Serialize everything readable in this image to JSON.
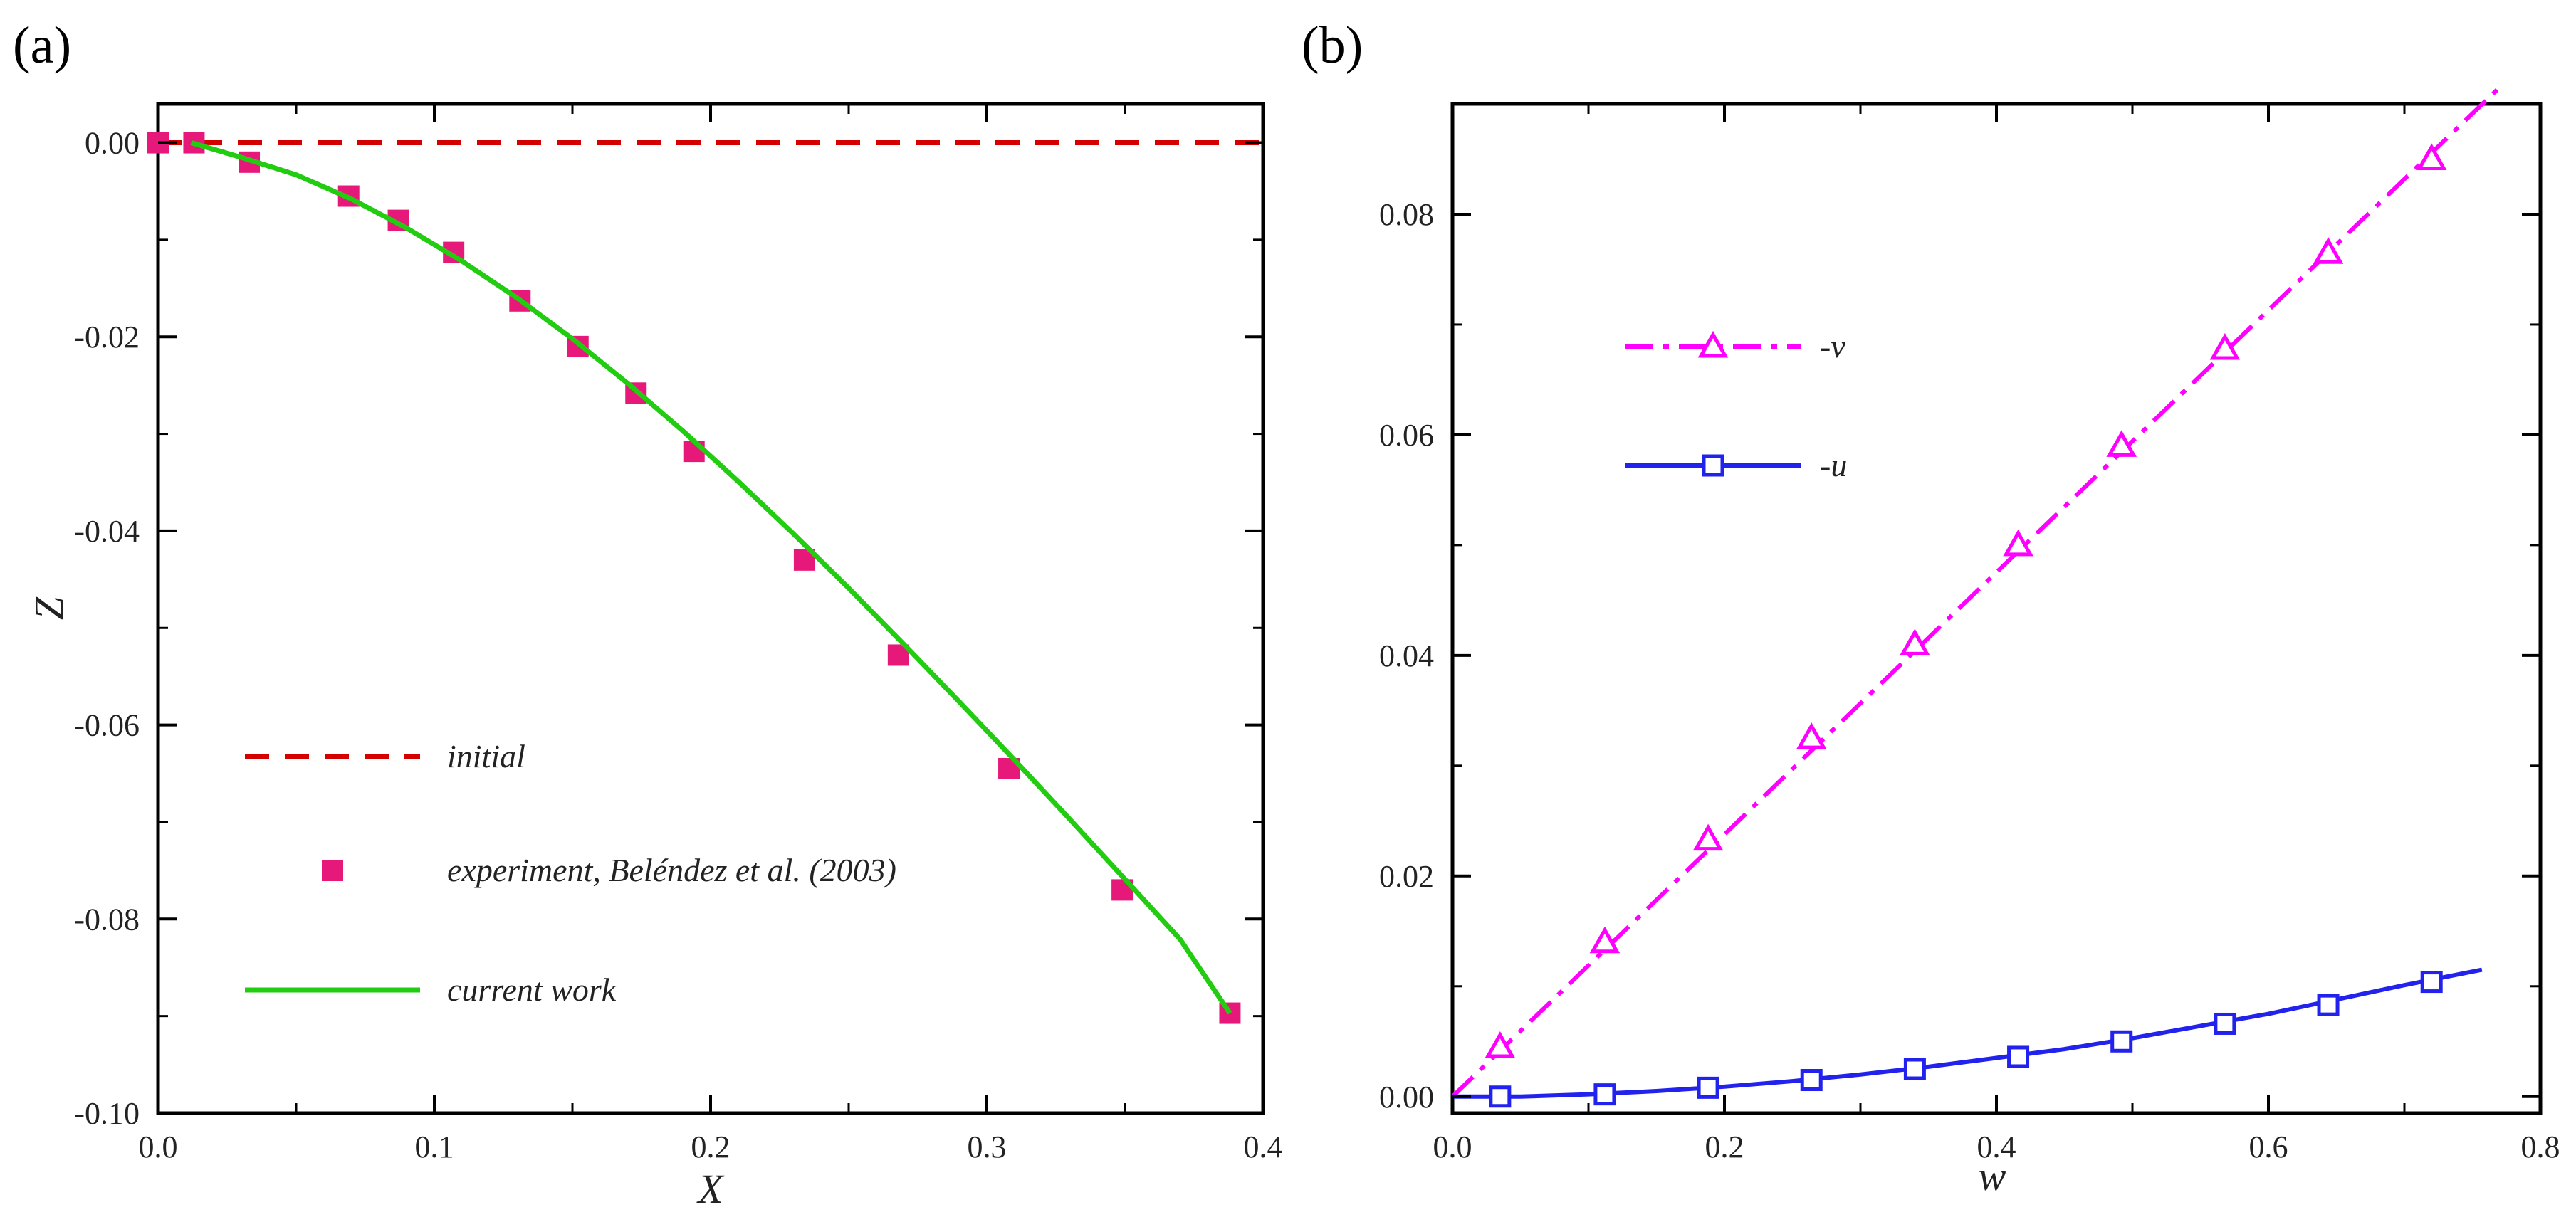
{
  "colors": {
    "initial": "#d40000",
    "experiment": "#e6197a",
    "current": "#22cc11",
    "v": "#ff00ff",
    "u": "#2222ee",
    "axis": "#000000"
  },
  "chart_data": [
    {
      "panel": "(a)",
      "type": "line",
      "xlabel": "X",
      "ylabel": "Z",
      "xlim": [
        0.0,
        0.4
      ],
      "ylim": [
        -0.1,
        0.004
      ],
      "xticks": [
        0.0,
        0.1,
        0.2,
        0.3,
        0.4
      ],
      "xtick_labels": [
        "0.0",
        "0.1",
        "0.2",
        "0.3",
        "0.4"
      ],
      "yticks": [
        0.0,
        -0.02,
        -0.04,
        -0.06,
        -0.08,
        -0.1
      ],
      "ytick_labels": [
        "0.00",
        "-0.02",
        "-0.04",
        "-0.06",
        "-0.08",
        "-0.10"
      ],
      "legend_position": "bottom-left",
      "series": [
        {
          "name": "initial",
          "style": "dashed",
          "color": "#d40000",
          "x": [
            0.0,
            0.4
          ],
          "y": [
            0.0,
            0.0
          ]
        },
        {
          "name": "experiment, Beléndez et al. (2003)",
          "style": "square-markers",
          "color": "#e6197a",
          "x": [
            0.0,
            0.013,
            0.033,
            0.069,
            0.087,
            0.107,
            0.131,
            0.152,
            0.173,
            0.194,
            0.234,
            0.268,
            0.308,
            0.349,
            0.388
          ],
          "y": [
            0.0,
            0.0,
            -0.002,
            -0.0055,
            -0.008,
            -0.0113,
            -0.0163,
            -0.021,
            -0.0258,
            -0.0318,
            -0.043,
            -0.0528,
            -0.0645,
            -0.077,
            -0.0897
          ]
        },
        {
          "name": "current work",
          "style": "solid",
          "color": "#22cc11",
          "x": [
            0.012,
            0.03,
            0.05,
            0.07,
            0.09,
            0.11,
            0.13,
            0.15,
            0.17,
            0.19,
            0.21,
            0.23,
            0.25,
            0.27,
            0.29,
            0.31,
            0.33,
            0.35,
            0.37,
            0.388
          ],
          "y": [
            0.0,
            -0.0015,
            -0.0033,
            -0.0058,
            -0.0088,
            -0.0122,
            -0.016,
            -0.0202,
            -0.0248,
            -0.0297,
            -0.0349,
            -0.0403,
            -0.0459,
            -0.0517,
            -0.0576,
            -0.0636,
            -0.0697,
            -0.0759,
            -0.0821,
            -0.0897
          ]
        }
      ]
    },
    {
      "panel": "(b)",
      "type": "line",
      "xlabel": "w",
      "ylabel": "",
      "xlim": [
        0.0,
        0.8
      ],
      "ylim": [
        -0.0015,
        0.09
      ],
      "xticks": [
        0.0,
        0.2,
        0.4,
        0.6,
        0.8
      ],
      "xtick_labels": [
        "0.0",
        "0.2",
        "0.4",
        "0.6",
        "0.8"
      ],
      "yticks": [
        0.0,
        0.02,
        0.04,
        0.06,
        0.08
      ],
      "ytick_labels": [
        "0.00",
        "0.02",
        "0.04",
        "0.06",
        "0.08"
      ],
      "legend_position": "upper-left",
      "series": [
        {
          "name": "-v",
          "style": "dashdot-triangles",
          "color": "#ff00ff",
          "x": [
            0.0,
            0.77
          ],
          "y": [
            0.0,
            0.0915
          ],
          "marker_x": [
            0.035,
            0.112,
            0.188,
            0.264,
            0.34,
            0.416,
            0.492,
            0.568,
            0.644,
            0.72
          ],
          "marker_y": [
            0.0045,
            0.014,
            0.0233,
            0.0325,
            0.041,
            0.05,
            0.059,
            0.0678,
            0.0765,
            0.085
          ]
        },
        {
          "name": "-u",
          "style": "solid-squares",
          "color": "#2222ee",
          "x": [
            0.0,
            0.05,
            0.1,
            0.15,
            0.2,
            0.25,
            0.3,
            0.35,
            0.4,
            0.45,
            0.5,
            0.55,
            0.6,
            0.65,
            0.7,
            0.757
          ],
          "y": [
            0.0,
            0.0,
            0.0002,
            0.0005,
            0.0009,
            0.0014,
            0.002,
            0.0027,
            0.0035,
            0.0043,
            0.0053,
            0.0064,
            0.0075,
            0.0088,
            0.0101,
            0.0115
          ],
          "marker_x": [
            0.035,
            0.112,
            0.188,
            0.264,
            0.34,
            0.416,
            0.492,
            0.568,
            0.644,
            0.72
          ],
          "marker_y": [
            0.0,
            0.0002,
            0.0008,
            0.0015,
            0.0025,
            0.0036,
            0.005,
            0.0066,
            0.0083,
            0.0104
          ]
        }
      ]
    }
  ]
}
